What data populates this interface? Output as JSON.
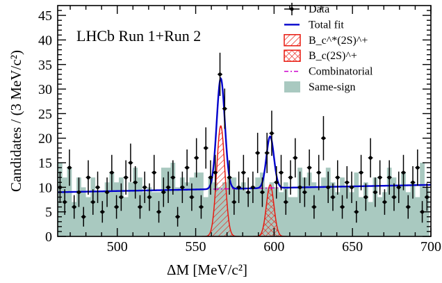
{
  "chart_data": {
    "type": "histogram",
    "xlabel": "ΔM [MeV/c²]",
    "ylabel": "Candidates / (3 MeV/c²)",
    "xlim": [
      462,
      700
    ],
    "ylim": [
      0,
      47
    ],
    "xticks": [
      500,
      550,
      600,
      650,
      700
    ],
    "yticks": [
      0,
      5,
      10,
      15,
      20,
      25,
      30,
      35,
      40,
      45
    ],
    "annotation": "LHCb Run 1+Run 2",
    "legend_position": "top-right",
    "legend": [
      {
        "label": "Data",
        "style": "marker"
      },
      {
        "label": "Total fit",
        "style": "line",
        "color": "#0000cc"
      },
      {
        "label": "B_c^*(2S)^+",
        "style": "hatch",
        "color": "#e8190f"
      },
      {
        "label": "B_c(2S)^+",
        "style": "crosshatch",
        "color": "#e8190f"
      },
      {
        "label": "Combinatorial",
        "style": "dashdot",
        "color": "#cc00cc"
      },
      {
        "label": "Same-sign",
        "style": "fill",
        "color": "#a9c9c0"
      }
    ],
    "bin_width": 3,
    "data_points": {
      "x": [
        463.5,
        466.5,
        469.5,
        472.5,
        475.5,
        478.5,
        481.5,
        484.5,
        487.5,
        490.5,
        493.5,
        496.5,
        499.5,
        502.5,
        505.5,
        508.5,
        511.5,
        514.5,
        517.5,
        520.5,
        523.5,
        526.5,
        529.5,
        532.5,
        535.5,
        538.5,
        541.5,
        544.5,
        547.5,
        550.5,
        553.5,
        556.5,
        559.5,
        562.5,
        565.5,
        568.5,
        571.5,
        574.5,
        577.5,
        580.5,
        583.5,
        586.5,
        589.5,
        592.5,
        595.5,
        598.5,
        601.5,
        604.5,
        607.5,
        610.5,
        613.5,
        616.5,
        619.5,
        622.5,
        625.5,
        628.5,
        631.5,
        634.5,
        637.5,
        640.5,
        643.5,
        646.5,
        649.5,
        652.5,
        655.5,
        658.5,
        661.5,
        664.5,
        667.5,
        670.5,
        673.5,
        676.5,
        679.5,
        682.5,
        685.5,
        688.5,
        691.5,
        694.5,
        697.5
      ],
      "y": [
        10,
        7,
        14,
        6,
        9,
        4,
        12,
        7,
        10,
        5,
        9,
        13,
        6,
        8,
        12,
        15,
        11,
        6,
        10,
        8,
        13,
        5,
        9,
        10,
        12,
        4,
        10,
        14,
        8,
        16,
        6,
        18,
        12,
        13,
        33,
        26,
        12,
        7,
        10,
        13,
        9,
        10,
        17,
        9,
        17,
        21,
        11,
        13,
        7,
        12,
        16,
        10,
        9,
        14,
        6,
        13,
        20,
        10,
        8,
        12,
        6,
        11,
        10,
        5,
        13,
        8,
        16,
        9,
        12,
        7,
        12,
        8,
        10,
        13,
        6,
        11,
        14,
        5,
        8
      ],
      "err": [
        3.2,
        2.6,
        3.7,
        2.4,
        3.0,
        2.0,
        3.5,
        2.6,
        3.2,
        2.2,
        3.0,
        3.6,
        2.4,
        2.8,
        3.5,
        3.9,
        3.3,
        2.4,
        3.2,
        2.8,
        3.6,
        2.2,
        3.0,
        3.2,
        3.5,
        2.0,
        3.2,
        3.7,
        2.8,
        4.0,
        2.4,
        4.2,
        3.5,
        3.6,
        4.4,
        4.1,
        3.5,
        2.6,
        3.2,
        3.6,
        3.0,
        3.2,
        4.1,
        3.0,
        4.1,
        4.6,
        3.3,
        3.6,
        2.6,
        3.5,
        4.0,
        3.2,
        3.0,
        3.7,
        2.4,
        3.6,
        4.5,
        3.2,
        2.8,
        3.5,
        2.4,
        3.3,
        3.2,
        2.2,
        3.6,
        2.8,
        4.0,
        3.0,
        3.5,
        2.6,
        3.5,
        2.8,
        3.2,
        3.6,
        2.4,
        3.3,
        3.7,
        2.2,
        2.8
      ]
    },
    "same_sign": {
      "x_edges_start": 462,
      "values": [
        15,
        12,
        14,
        7,
        12,
        10,
        8,
        12,
        9,
        9,
        11,
        13,
        11,
        12,
        8,
        11,
        14,
        12,
        9,
        10,
        9,
        9,
        14,
        14,
        15,
        10,
        12,
        11,
        12,
        13,
        13,
        8,
        12,
        11,
        10,
        11,
        12,
        12,
        10,
        11,
        9,
        10,
        12,
        13,
        10,
        11,
        10,
        9,
        11,
        8,
        8,
        14,
        12,
        13,
        11,
        10,
        12,
        14,
        11,
        9,
        12,
        10,
        9,
        13,
        8,
        11,
        7,
        12,
        8,
        9,
        14,
        12,
        10,
        13,
        9,
        11,
        8,
        15,
        10
      ]
    },
    "combinatorial": {
      "x": [
        462,
        700
      ],
      "y": [
        9.0,
        10.5
      ]
    },
    "bcstar2s": {
      "mean": 566,
      "sigma": 2.6,
      "amplitude": 22.5
    },
    "bc2s": {
      "mean": 597.5,
      "sigma": 2.4,
      "amplitude": 10.5
    }
  }
}
